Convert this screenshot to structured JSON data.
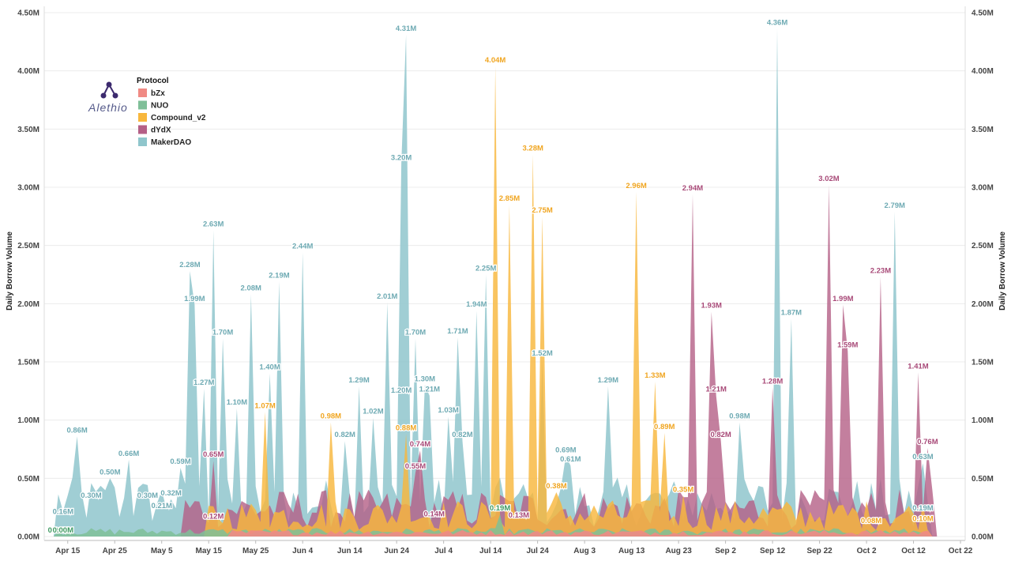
{
  "chart_data": {
    "type": "area",
    "title": "",
    "xlabel": "",
    "ylabel": "Daily Borrow Volume",
    "y2label": "Daily Borrow Volume",
    "ylim": [
      0,
      4.5
    ],
    "yunit": "M",
    "ytick_labels": [
      "0.00M",
      "0.50M",
      "1.00M",
      "1.50M",
      "2.00M",
      "2.50M",
      "3.00M",
      "3.50M",
      "4.00M",
      "4.50M"
    ],
    "xlim": [
      "2019-04-10",
      "2019-10-23"
    ],
    "xtick_labels": [
      "Apr 15",
      "Apr 25",
      "May 5",
      "May 15",
      "May 25",
      "Jun 4",
      "Jun 14",
      "Jun 24",
      "Jul 4",
      "Jul 14",
      "Jul 24",
      "Aug 3",
      "Aug 13",
      "Aug 23",
      "Sep 2",
      "Sep 12",
      "Sep 22",
      "Oct 2",
      "Oct 12",
      "Oct 22"
    ],
    "grid": true,
    "legend": {
      "title": "Protocol",
      "placement": "top-left",
      "entries": [
        "bZx",
        "NUO",
        "Compound_v2",
        "dYdX",
        "MakerDAO"
      ]
    },
    "logo_text": "Alethio",
    "colors": {
      "bZx": "#f08a84",
      "NUO": "#7fbf98",
      "Compound_v2": "#f8b73d",
      "dYdX": "#b45f86",
      "MakerDAO": "#8fc6cc"
    },
    "series": [
      {
        "name": "MakerDAO",
        "labels": [
          {
            "x": "2019-04-14",
            "y": 0.16,
            "text": "0.16M"
          },
          {
            "x": "2019-04-17",
            "y": 0.86,
            "text": "0.86M"
          },
          {
            "x": "2019-04-20",
            "y": 0.3,
            "text": "0.30M"
          },
          {
            "x": "2019-04-24",
            "y": 0.5,
            "text": "0.50M"
          },
          {
            "x": "2019-04-28",
            "y": 0.66,
            "text": "0.66M"
          },
          {
            "x": "2019-05-02",
            "y": 0.3,
            "text": "0.30M"
          },
          {
            "x": "2019-05-05",
            "y": 0.21,
            "text": "0.21M"
          },
          {
            "x": "2019-05-07",
            "y": 0.32,
            "text": "0.32M"
          },
          {
            "x": "2019-05-09",
            "y": 0.59,
            "text": "0.59M"
          },
          {
            "x": "2019-05-11",
            "y": 2.28,
            "text": "2.28M"
          },
          {
            "x": "2019-05-12",
            "y": 1.99,
            "text": "1.99M"
          },
          {
            "x": "2019-05-14",
            "y": 1.27,
            "text": "1.27M"
          },
          {
            "x": "2019-05-16",
            "y": 2.63,
            "text": "2.63M"
          },
          {
            "x": "2019-05-18",
            "y": 1.7,
            "text": "1.70M"
          },
          {
            "x": "2019-05-21",
            "y": 1.1,
            "text": "1.10M"
          },
          {
            "x": "2019-05-24",
            "y": 2.08,
            "text": "2.08M"
          },
          {
            "x": "2019-05-28",
            "y": 1.4,
            "text": "1.40M"
          },
          {
            "x": "2019-05-30",
            "y": 2.19,
            "text": "2.19M"
          },
          {
            "x": "2019-06-04",
            "y": 2.44,
            "text": "2.44M"
          },
          {
            "x": "2019-06-13",
            "y": 0.82,
            "text": "0.82M"
          },
          {
            "x": "2019-06-16",
            "y": 1.29,
            "text": "1.29M"
          },
          {
            "x": "2019-06-19",
            "y": 1.02,
            "text": "1.02M"
          },
          {
            "x": "2019-06-22",
            "y": 2.01,
            "text": "2.01M"
          },
          {
            "x": "2019-06-25",
            "y": 3.2,
            "text": "3.20M"
          },
          {
            "x": "2019-06-25",
            "y": 1.2,
            "text": "1.20M"
          },
          {
            "x": "2019-06-26",
            "y": 4.31,
            "text": "4.31M"
          },
          {
            "x": "2019-06-28",
            "y": 1.7,
            "text": "1.70M"
          },
          {
            "x": "2019-06-30",
            "y": 1.3,
            "text": "1.30M"
          },
          {
            "x": "2019-07-01",
            "y": 1.21,
            "text": "1.21M"
          },
          {
            "x": "2019-07-05",
            "y": 1.03,
            "text": "1.03M"
          },
          {
            "x": "2019-07-07",
            "y": 1.71,
            "text": "1.71M"
          },
          {
            "x": "2019-07-08",
            "y": 0.82,
            "text": "0.82M"
          },
          {
            "x": "2019-07-11",
            "y": 1.94,
            "text": "1.94M"
          },
          {
            "x": "2019-07-13",
            "y": 2.25,
            "text": "2.25M"
          },
          {
            "x": "2019-07-25",
            "y": 1.52,
            "text": "1.52M"
          },
          {
            "x": "2019-07-30",
            "y": 0.69,
            "text": "0.69M"
          },
          {
            "x": "2019-07-31",
            "y": 0.61,
            "text": "0.61M"
          },
          {
            "x": "2019-08-08",
            "y": 1.29,
            "text": "1.29M"
          },
          {
            "x": "2019-09-05",
            "y": 0.98,
            "text": "0.98M"
          },
          {
            "x": "2019-09-13",
            "y": 4.36,
            "text": "4.36M"
          },
          {
            "x": "2019-09-16",
            "y": 1.87,
            "text": "1.87M"
          },
          {
            "x": "2019-10-08",
            "y": 2.79,
            "text": "2.79M"
          },
          {
            "x": "2019-10-14",
            "y": 0.63,
            "text": "0.63M"
          },
          {
            "x": "2019-10-14",
            "y": 0.19,
            "text": "0.19M"
          }
        ]
      },
      {
        "name": "Compound_v2",
        "labels": [
          {
            "x": "2019-05-27",
            "y": 1.07,
            "text": "1.07M"
          },
          {
            "x": "2019-06-10",
            "y": 0.98,
            "text": "0.98M"
          },
          {
            "x": "2019-06-26",
            "y": 0.88,
            "text": "0.88M"
          },
          {
            "x": "2019-07-15",
            "y": 4.04,
            "text": "4.04M"
          },
          {
            "x": "2019-07-18",
            "y": 2.85,
            "text": "2.85M"
          },
          {
            "x": "2019-07-23",
            "y": 3.28,
            "text": "3.28M"
          },
          {
            "x": "2019-07-25",
            "y": 2.75,
            "text": "2.75M"
          },
          {
            "x": "2019-07-28",
            "y": 0.38,
            "text": "0.38M"
          },
          {
            "x": "2019-08-14",
            "y": 2.96,
            "text": "2.96M"
          },
          {
            "x": "2019-08-18",
            "y": 1.33,
            "text": "1.33M"
          },
          {
            "x": "2019-08-20",
            "y": 0.89,
            "text": "0.89M"
          },
          {
            "x": "2019-08-24",
            "y": 0.35,
            "text": "0.35M"
          },
          {
            "x": "2019-10-03",
            "y": 0.08,
            "text": "0.08M"
          },
          {
            "x": "2019-10-14",
            "y": 0.1,
            "text": "0.10M"
          }
        ]
      },
      {
        "name": "dYdX",
        "labels": [
          {
            "x": "2019-05-16",
            "y": 0.65,
            "text": "0.65M"
          },
          {
            "x": "2019-05-16",
            "y": 0.12,
            "text": "0.12M"
          },
          {
            "x": "2019-06-29",
            "y": 0.74,
            "text": "0.74M"
          },
          {
            "x": "2019-06-28",
            "y": 0.55,
            "text": "0.55M"
          },
          {
            "x": "2019-07-02",
            "y": 0.14,
            "text": "0.14M"
          },
          {
            "x": "2019-07-20",
            "y": 0.13,
            "text": "0.13M"
          },
          {
            "x": "2019-08-26",
            "y": 2.94,
            "text": "2.94M"
          },
          {
            "x": "2019-08-30",
            "y": 1.93,
            "text": "1.93M"
          },
          {
            "x": "2019-08-31",
            "y": 1.21,
            "text": "1.21M"
          },
          {
            "x": "2019-09-01",
            "y": 0.82,
            "text": "0.82M"
          },
          {
            "x": "2019-09-12",
            "y": 1.28,
            "text": "1.28M"
          },
          {
            "x": "2019-09-24",
            "y": 3.02,
            "text": "3.02M"
          },
          {
            "x": "2019-09-27",
            "y": 1.99,
            "text": "1.99M"
          },
          {
            "x": "2019-09-28",
            "y": 1.59,
            "text": "1.59M"
          },
          {
            "x": "2019-10-05",
            "y": 2.23,
            "text": "2.23M"
          },
          {
            "x": "2019-10-13",
            "y": 1.41,
            "text": "1.41M"
          },
          {
            "x": "2019-10-15",
            "y": 0.76,
            "text": "0.76M"
          }
        ]
      },
      {
        "name": "NUO",
        "labels": [
          {
            "x": "2019-04-13",
            "y": 0.0,
            "text": "0.00M"
          },
          {
            "x": "2019-04-14",
            "y": 0.0,
            "text": "0.00M"
          },
          {
            "x": "2019-07-16",
            "y": 0.19,
            "text": "0.19M"
          }
        ]
      }
    ]
  }
}
